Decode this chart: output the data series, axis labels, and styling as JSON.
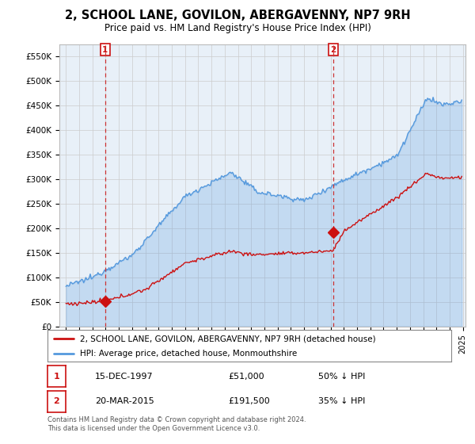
{
  "title": "2, SCHOOL LANE, GOVILON, ABERGAVENNY, NP7 9RH",
  "subtitle": "Price paid vs. HM Land Registry's House Price Index (HPI)",
  "legend_label_red": "2, SCHOOL LANE, GOVILON, ABERGAVENNY, NP7 9RH (detached house)",
  "legend_label_blue": "HPI: Average price, detached house, Monmouthshire",
  "transaction1_date": "15-DEC-1997",
  "transaction1_price": 51000,
  "transaction1_label": "50% ↓ HPI",
  "transaction1_year": 1997.96,
  "transaction2_date": "20-MAR-2015",
  "transaction2_price": 191500,
  "transaction2_label": "35% ↓ HPI",
  "transaction2_year": 2015.22,
  "footnote": "Contains HM Land Registry data © Crown copyright and database right 2024.\nThis data is licensed under the Open Government Licence v3.0.",
  "ylim": [
    0,
    575000
  ],
  "yticks": [
    0,
    50000,
    100000,
    150000,
    200000,
    250000,
    300000,
    350000,
    400000,
    450000,
    500000,
    550000
  ],
  "ytick_labels": [
    "£0",
    "£50K",
    "£100K",
    "£150K",
    "£200K",
    "£250K",
    "£300K",
    "£350K",
    "£400K",
    "£450K",
    "£500K",
    "£550K"
  ],
  "red_color": "#cc1111",
  "blue_color": "#5599dd",
  "blue_fill_color": "#ddeeff",
  "vline_color": "#cc3333",
  "background_color": "#ffffff",
  "plot_bg_color": "#e8f0f8",
  "grid_color": "#cccccc",
  "xmin": 1995.0,
  "xmax": 2025.0
}
